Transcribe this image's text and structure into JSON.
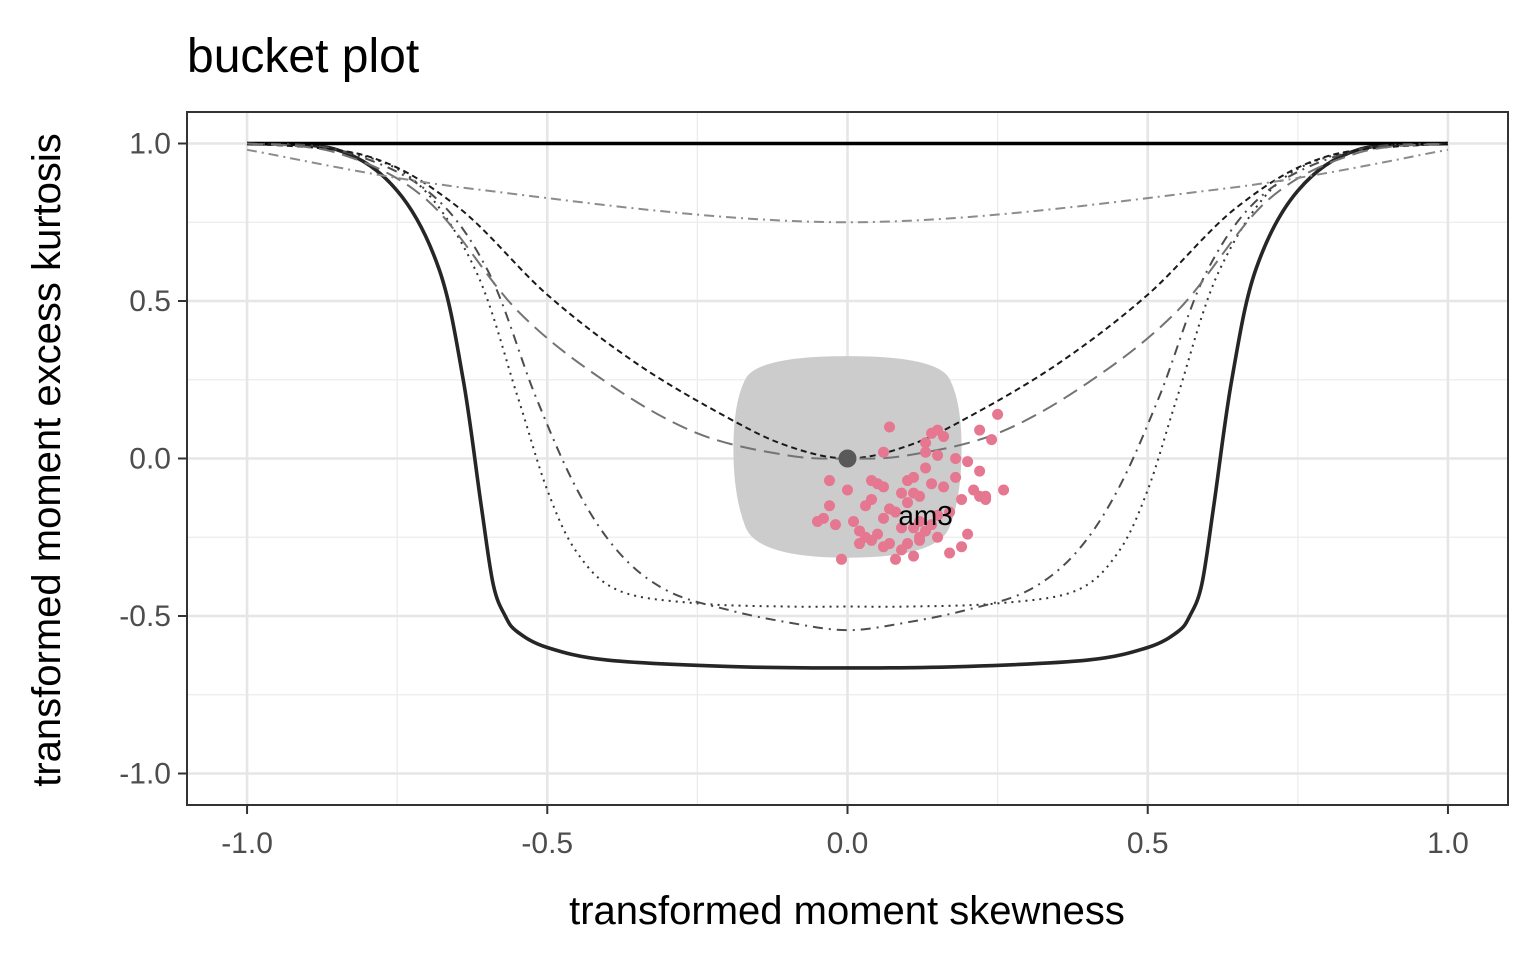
{
  "chart_data": {
    "type": "scatter",
    "title": "bucket plot",
    "xlabel": "transformed moment skewness",
    "ylabel": "transformed moment excess kurtosis",
    "xlim": [
      -1.1,
      1.1
    ],
    "ylim": [
      -1.1,
      1.1
    ],
    "x_ticks": [
      -1.0,
      -0.5,
      0.0,
      0.5,
      1.0
    ],
    "x_tick_labels": [
      "-1.0",
      "-0.5",
      "0.0",
      "0.5",
      "1.0"
    ],
    "y_ticks": [
      -1.0,
      -0.5,
      0.0,
      0.5,
      1.0
    ],
    "y_tick_labels": [
      "-1.0",
      "-0.5",
      "0.0",
      "0.5",
      "1.0"
    ],
    "grid": true,
    "legend": "none",
    "annotation": {
      "text": "am3",
      "x": 0.13,
      "y": -0.18
    },
    "reference_point": {
      "x": 0.0,
      "y": 0.0,
      "color": "#595959"
    },
    "confidence_region": {
      "color": "#cccccc",
      "outline": [
        [
          -0.15,
          0.325
        ],
        [
          0.15,
          0.325
        ],
        [
          0.19,
          0.18
        ],
        [
          0.19,
          -0.12
        ],
        [
          0.15,
          -0.315
        ],
        [
          -0.15,
          -0.315
        ],
        [
          -0.19,
          -0.12
        ],
        [
          -0.19,
          0.18
        ]
      ]
    },
    "series": [
      {
        "style": "solid-bold",
        "color": "#262626",
        "x": [
          -1.0,
          -0.85,
          -0.75,
          -0.68,
          -0.64,
          -0.61,
          -0.59,
          -0.57,
          -0.55,
          -0.5,
          -0.4,
          -0.2,
          0.0,
          0.2,
          0.4,
          0.5,
          0.55,
          0.57,
          0.59,
          0.61,
          0.64,
          0.68,
          0.75,
          0.85,
          1.0
        ],
        "y": [
          1.0,
          0.98,
          0.85,
          0.6,
          0.25,
          -0.15,
          -0.4,
          -0.5,
          -0.55,
          -0.6,
          -0.64,
          -0.66,
          -0.665,
          -0.66,
          -0.64,
          -0.6,
          -0.55,
          -0.5,
          -0.4,
          -0.15,
          0.25,
          0.6,
          0.85,
          0.98,
          1.0
        ]
      },
      {
        "style": "solid",
        "color": "#000000",
        "x": [
          -1.0,
          1.0
        ],
        "y": [
          1.0,
          1.0
        ]
      },
      {
        "style": "dotted",
        "color": "#333333",
        "x": [
          -1.0,
          -0.85,
          -0.72,
          -0.62,
          -0.55,
          -0.5,
          -0.45,
          -0.38,
          -0.25,
          -0.1,
          0.0,
          0.1,
          0.25,
          0.38,
          0.45,
          0.5,
          0.55,
          0.62,
          0.72,
          0.85,
          1.0
        ],
        "y": [
          1.0,
          0.98,
          0.88,
          0.6,
          0.2,
          -0.1,
          -0.3,
          -0.42,
          -0.46,
          -0.47,
          -0.47,
          -0.47,
          -0.46,
          -0.42,
          -0.3,
          -0.1,
          0.2,
          0.6,
          0.88,
          0.98,
          1.0
        ]
      },
      {
        "style": "dashdot-long",
        "color": "#4d4d4d",
        "x": [
          -1.0,
          -0.85,
          -0.7,
          -0.6,
          -0.52,
          -0.45,
          -0.38,
          -0.3,
          -0.2,
          -0.1,
          0.0,
          0.1,
          0.2,
          0.3,
          0.38,
          0.45,
          0.52,
          0.6,
          0.7,
          0.85,
          1.0
        ],
        "y": [
          1.0,
          0.98,
          0.85,
          0.6,
          0.2,
          -0.1,
          -0.3,
          -0.42,
          -0.48,
          -0.52,
          -0.545,
          -0.52,
          -0.48,
          -0.42,
          -0.3,
          -0.1,
          0.2,
          0.6,
          0.85,
          0.98,
          1.0
        ]
      },
      {
        "style": "dashed-fine",
        "color": "#1a1a1a",
        "x": [
          -1.0,
          -0.8,
          -0.65,
          -0.5,
          -0.35,
          -0.2,
          -0.1,
          0.0,
          0.1,
          0.2,
          0.35,
          0.5,
          0.65,
          0.8,
          1.0
        ],
        "y": [
          1.0,
          0.96,
          0.8,
          0.52,
          0.3,
          0.13,
          0.04,
          0.0,
          0.04,
          0.13,
          0.3,
          0.52,
          0.8,
          0.96,
          1.0
        ]
      },
      {
        "style": "dashed-long",
        "color": "#737373",
        "x": [
          -1.0,
          -0.85,
          -0.7,
          -0.55,
          -0.4,
          -0.25,
          -0.1,
          0.0,
          0.1,
          0.25,
          0.4,
          0.55,
          0.7,
          0.85,
          1.0
        ],
        "y": [
          1.0,
          0.97,
          0.82,
          0.47,
          0.24,
          0.08,
          0.01,
          0.0,
          0.01,
          0.08,
          0.24,
          0.47,
          0.82,
          0.97,
          1.0
        ]
      },
      {
        "style": "dashdot",
        "color": "#8c8c8c",
        "x": [
          -1.0,
          -0.62,
          0.0,
          0.62,
          1.0
        ],
        "y": [
          0.98,
          0.855,
          0.75,
          0.855,
          0.98
        ]
      }
    ],
    "points": {
      "color": "#e57791",
      "x": [
        0.07,
        0.14,
        0.15,
        0.16,
        0.25,
        0.22,
        0.24,
        0.13,
        0.13,
        0.18,
        0.06,
        0.15,
        0.13,
        0.2,
        0.22,
        0.18,
        0.04,
        0.1,
        0.14,
        0.26,
        0.21,
        0.16,
        0.23,
        0.11,
        0.19,
        0.22,
        0.23,
        -0.03,
        0.05,
        0.0,
        0.09,
        0.03,
        0.04,
        0.06,
        0.12,
        0.15,
        0.17,
        0.12,
        0.08,
        0.11,
        -0.02,
        0.02,
        0.05,
        0.06,
        0.13,
        0.15,
        0.2,
        0.07,
        0.09,
        0.12,
        0.1,
        -0.03,
        -0.04,
        -0.05,
        0.11,
        0.08,
        0.14,
        0.12,
        0.04,
        0.06,
        0.01,
        0.03,
        0.09,
        0.17,
        0.19,
        0.1,
        0.07,
        0.11,
        0.02,
        -0.01
      ],
      "y": [
        0.1,
        0.08,
        0.09,
        0.07,
        0.14,
        0.09,
        0.06,
        0.05,
        0.02,
        0.0,
        0.02,
        0.01,
        -0.03,
        -0.01,
        -0.04,
        -0.06,
        -0.07,
        -0.07,
        -0.08,
        -0.1,
        -0.1,
        -0.09,
        -0.12,
        -0.11,
        -0.13,
        -0.12,
        -0.13,
        -0.07,
        -0.08,
        -0.1,
        -0.11,
        -0.15,
        -0.13,
        -0.09,
        -0.12,
        -0.18,
        -0.17,
        -0.2,
        -0.17,
        -0.22,
        -0.21,
        -0.23,
        -0.24,
        -0.19,
        -0.23,
        -0.25,
        -0.24,
        -0.27,
        -0.29,
        -0.26,
        -0.27,
        -0.15,
        -0.19,
        -0.2,
        -0.31,
        -0.32,
        -0.21,
        -0.25,
        -0.26,
        -0.28,
        -0.2,
        -0.25,
        -0.22,
        -0.3,
        -0.28,
        -0.14,
        -0.16,
        -0.06,
        -0.27,
        -0.32
      ]
    }
  }
}
